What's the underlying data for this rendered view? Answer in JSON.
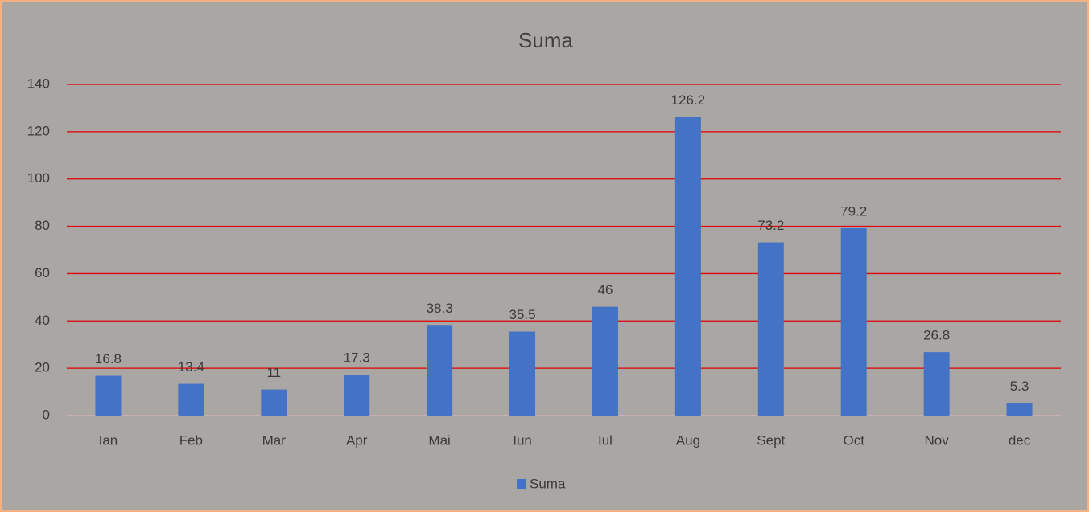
{
  "chart_data": {
    "type": "bar",
    "title": "Suma",
    "categories": [
      "Ian",
      "Feb",
      "Mar",
      "Apr",
      "Mai",
      "Iun",
      "Iul",
      "Aug",
      "Sept",
      "Oct",
      "Nov",
      "dec"
    ],
    "series": [
      {
        "name": "Suma",
        "color": "#4472c4",
        "values": [
          16.8,
          13.4,
          11,
          17.3,
          38.3,
          35.5,
          46,
          126.2,
          73.2,
          79.2,
          26.8,
          5.3
        ]
      }
    ],
    "ylim": [
      0,
      140
    ],
    "yticks": [
      0,
      20,
      40,
      60,
      80,
      100,
      120,
      140
    ],
    "grid": true,
    "grid_color": "#e00000",
    "legend": "bottom",
    "data_labels": true
  }
}
